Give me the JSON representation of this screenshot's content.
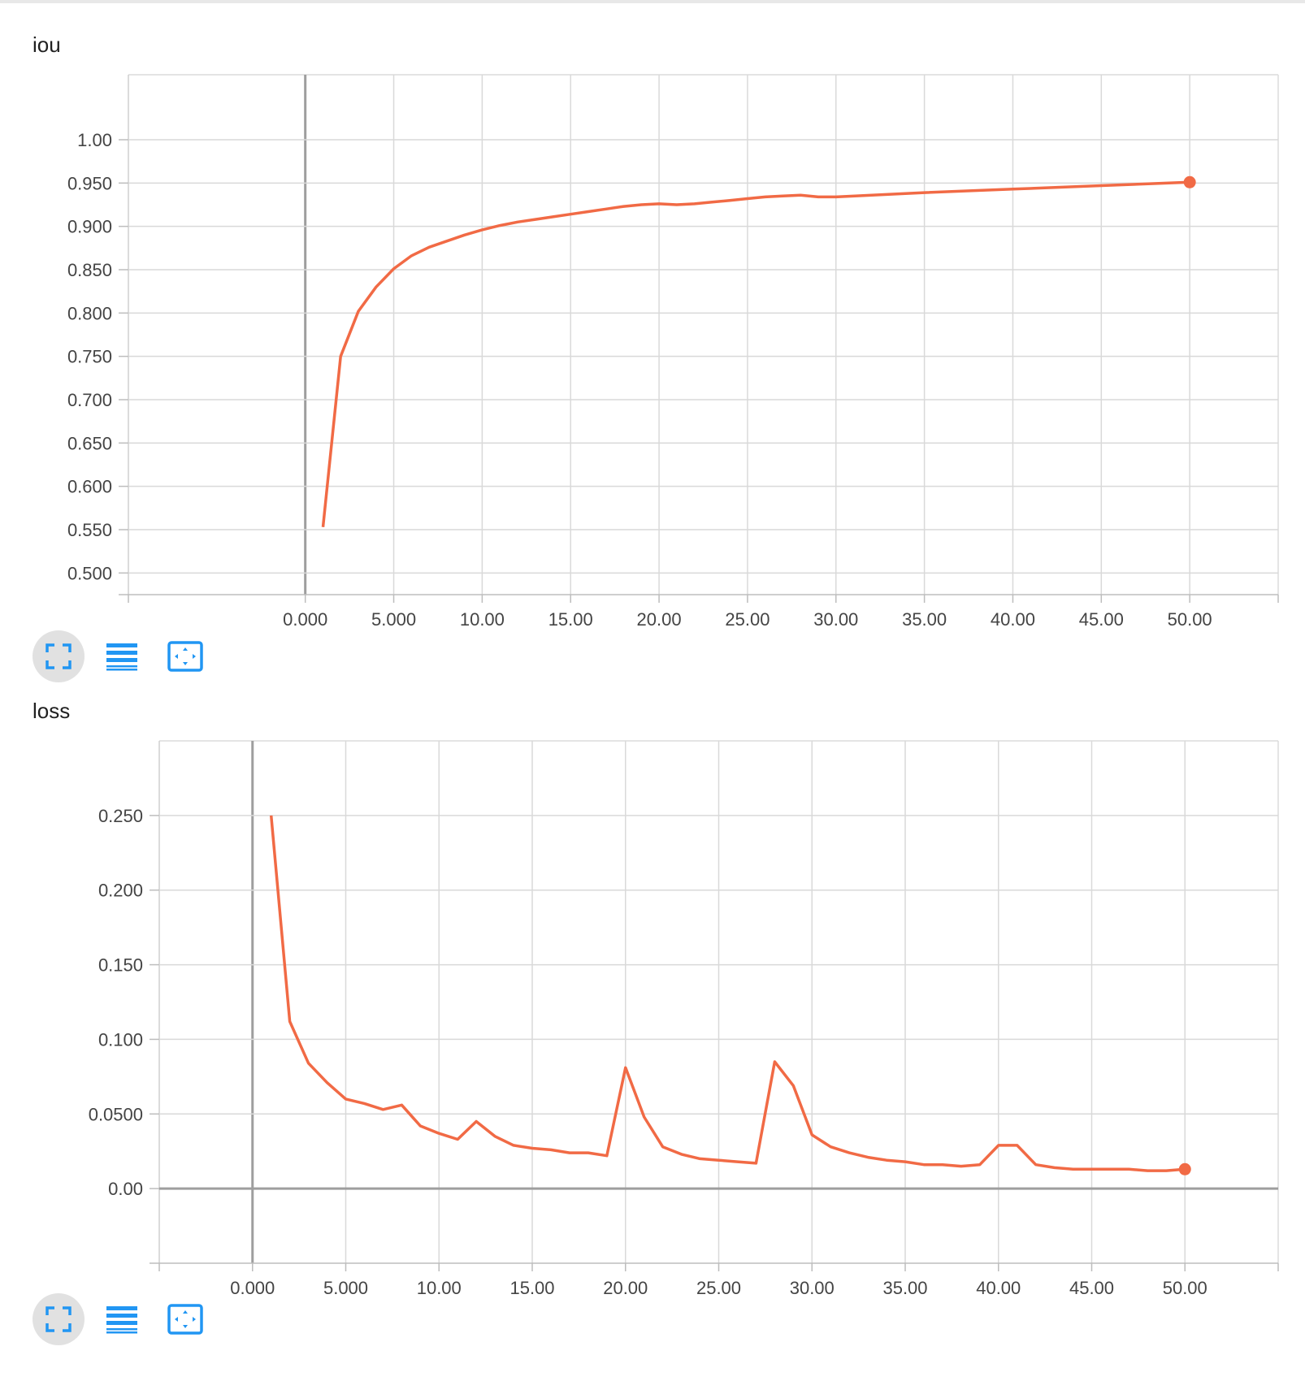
{
  "chart_data": [
    {
      "type": "line",
      "title": "iou",
      "xlabel": "",
      "ylabel": "",
      "xlim": [
        -10,
        55
      ],
      "ylim": [
        0.475,
        1.075
      ],
      "grid": true,
      "x_ticks": [
        0,
        5,
        10,
        15,
        20,
        25,
        30,
        35,
        40,
        45,
        50
      ],
      "x_tick_labels": [
        "0.000",
        "5.000",
        "10.00",
        "15.00",
        "20.00",
        "25.00",
        "30.00",
        "35.00",
        "40.00",
        "45.00",
        "50.00"
      ],
      "y_ticks": [
        0.5,
        0.55,
        0.6,
        0.65,
        0.7,
        0.75,
        0.8,
        0.85,
        0.9,
        0.95,
        1.0
      ],
      "y_tick_labels": [
        "0.500",
        "0.550",
        "0.600",
        "0.650",
        "0.700",
        "0.750",
        "0.800",
        "0.850",
        "0.900",
        "0.950",
        "1.00"
      ],
      "color": "#f16a45",
      "x": [
        1,
        2,
        3,
        4,
        5,
        6,
        7,
        8,
        9,
        10,
        11,
        12,
        13,
        14,
        15,
        16,
        17,
        18,
        19,
        20,
        21,
        22,
        23,
        24,
        25,
        26,
        27,
        28,
        29,
        30,
        35,
        40,
        45,
        50
      ],
      "values": [
        0.553,
        0.75,
        0.802,
        0.83,
        0.851,
        0.866,
        0.876,
        0.883,
        0.89,
        0.896,
        0.901,
        0.905,
        0.908,
        0.911,
        0.914,
        0.917,
        0.92,
        0.923,
        0.925,
        0.926,
        0.925,
        0.926,
        0.928,
        0.93,
        0.932,
        0.934,
        0.935,
        0.936,
        0.934,
        0.934,
        0.939,
        0.943,
        0.947,
        0.951
      ]
    },
    {
      "type": "line",
      "title": "loss",
      "xlabel": "",
      "ylabel": "",
      "xlim": [
        -5,
        55
      ],
      "ylim": [
        -0.05,
        0.3
      ],
      "grid": true,
      "x_ticks": [
        0,
        5,
        10,
        15,
        20,
        25,
        30,
        35,
        40,
        45,
        50
      ],
      "x_tick_labels": [
        "0.000",
        "5.000",
        "10.00",
        "15.00",
        "20.00",
        "25.00",
        "30.00",
        "35.00",
        "40.00",
        "45.00",
        "50.00"
      ],
      "y_ticks": [
        0,
        0.05,
        0.1,
        0.15,
        0.2,
        0.25
      ],
      "y_tick_labels": [
        "0.00",
        "0.0500",
        "0.100",
        "0.150",
        "0.200",
        "0.250"
      ],
      "color": "#f16a45",
      "x": [
        1,
        2,
        3,
        4,
        5,
        6,
        7,
        8,
        9,
        10,
        11,
        12,
        13,
        14,
        15,
        16,
        17,
        18,
        19,
        20,
        21,
        22,
        23,
        24,
        25,
        26,
        27,
        28,
        29,
        30,
        31,
        32,
        33,
        34,
        35,
        36,
        37,
        38,
        39,
        40,
        41,
        42,
        43,
        44,
        45,
        46,
        47,
        48,
        49,
        50
      ],
      "values": [
        0.25,
        0.112,
        0.084,
        0.071,
        0.06,
        0.057,
        0.053,
        0.056,
        0.042,
        0.037,
        0.033,
        0.045,
        0.035,
        0.029,
        0.027,
        0.026,
        0.024,
        0.024,
        0.022,
        0.081,
        0.048,
        0.028,
        0.023,
        0.02,
        0.019,
        0.018,
        0.017,
        0.085,
        0.069,
        0.036,
        0.028,
        0.024,
        0.021,
        0.019,
        0.018,
        0.016,
        0.016,
        0.015,
        0.016,
        0.029,
        0.029,
        0.016,
        0.014,
        0.013,
        0.013,
        0.013,
        0.013,
        0.012,
        0.012,
        0.013
      ]
    }
  ],
  "toolbar": {
    "buttons": [
      {
        "icon": "fullscreen-icon",
        "active": true
      },
      {
        "icon": "list-icon",
        "active": false
      },
      {
        "icon": "fit-domain-icon",
        "active": false
      }
    ],
    "icon_color": "#2196f3"
  }
}
